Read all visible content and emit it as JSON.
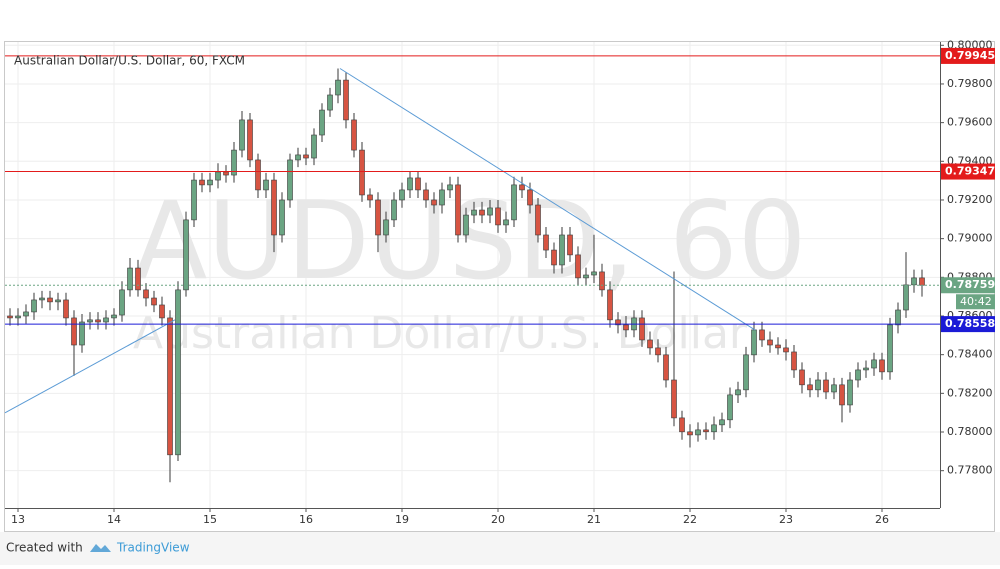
{
  "chart_data": {
    "type": "candlestick",
    "title": "Australian Dollar/U.S. Dollar, 60, FXCM",
    "watermark": "AUDUSD, 60",
    "watermark_subtitle": "Australian Dollar/U.S. Dollar",
    "x": [
      -2,
      0,
      2,
      4,
      6,
      8,
      10,
      12,
      14,
      16,
      18,
      20,
      22,
      24,
      26,
      28,
      30,
      32,
      34,
      36,
      38,
      40,
      42,
      44,
      46,
      48,
      50,
      52,
      54,
      56,
      58,
      60,
      62,
      64,
      66,
      68,
      70,
      72,
      74,
      76,
      78,
      80,
      82,
      84,
      86,
      88,
      90,
      92,
      94,
      96,
      98,
      100,
      102,
      104,
      106,
      108,
      110,
      112,
      114,
      116,
      118,
      120,
      122,
      124,
      126,
      128,
      130,
      132,
      134,
      136,
      138,
      140,
      142,
      144,
      146,
      148,
      150,
      152,
      154,
      156,
      158,
      160,
      162,
      164,
      166,
      168,
      170,
      172,
      174,
      176,
      178,
      180,
      182,
      184,
      186,
      188,
      190,
      192,
      194,
      196,
      198,
      200,
      202,
      204,
      206,
      208,
      210,
      212,
      214,
      216,
      218,
      220,
      222,
      224,
      226
    ],
    "open": [
      0.786,
      0.7859,
      0.786,
      0.78621,
      0.78683,
      0.78693,
      0.78673,
      0.78683,
      0.7859,
      0.7845,
      0.78569,
      0.7858,
      0.78569,
      0.7859,
      0.78605,
      0.78735,
      0.78848,
      0.78735,
      0.78693,
      0.78657,
      0.7859,
      0.77882,
      0.78735,
      0.79097,
      0.79303,
      0.79278,
      0.79303,
      0.79345,
      0.79329,
      0.79458,
      0.79614,
      0.79407,
      0.79252,
      0.79303,
      0.79019,
      0.792,
      0.79407,
      0.79433,
      0.79417,
      0.79536,
      0.79665,
      0.79743,
      0.7982,
      0.79614,
      0.79458,
      0.79226,
      0.792,
      0.79019,
      0.79097,
      0.792,
      0.79252,
      0.79314,
      0.79252,
      0.792,
      0.79174,
      0.79252,
      0.79278,
      0.79019,
      0.79122,
      0.79148,
      0.79122,
      0.79159,
      0.79071,
      0.79097,
      0.79278,
      0.79252,
      0.79174,
      0.79019,
      0.78941,
      0.78864,
      0.79019,
      0.78916,
      0.78797,
      0.78812,
      0.78828,
      0.78735,
      0.7858,
      0.78554,
      0.78528,
      0.7859,
      0.78476,
      0.78435,
      0.78399,
      0.78269,
      0.78073,
      0.78001,
      0.77985,
      0.78011,
      0.78001,
      0.78037,
      0.78063,
      0.78192,
      0.78218,
      0.78399,
      0.78528,
      0.78476,
      0.7845,
      0.78435,
      0.78414,
      0.78321,
      0.78244,
      0.78218,
      0.78269,
      0.78207,
      0.78244,
      0.7814,
      0.78269,
      0.78321,
      0.78331,
      0.78373,
      0.78311,
      0.78554,
      0.78631,
      0.78761,
      0.78797
    ],
    "high": [
      0.7864,
      0.7864,
      0.7866,
      0.7872,
      0.7873,
      0.7873,
      0.7872,
      0.7872,
      0.7863,
      0.7861,
      0.7862,
      0.7862,
      0.7863,
      0.7864,
      0.7878,
      0.789,
      0.7889,
      0.7877,
      0.7873,
      0.787,
      0.7863,
      0.7878,
      0.7914,
      0.7934,
      0.7934,
      0.7934,
      0.7939,
      0.7938,
      0.795,
      0.7966,
      0.7965,
      0.7944,
      0.7934,
      0.7934,
      0.7924,
      0.7944,
      0.7947,
      0.7947,
      0.7957,
      0.797,
      0.7978,
      0.7988,
      0.7986,
      0.7965,
      0.795,
      0.7926,
      0.7924,
      0.7914,
      0.7924,
      0.7929,
      0.7935,
      0.7935,
      0.7929,
      0.7924,
      0.7929,
      0.7932,
      0.7932,
      0.7916,
      0.7919,
      0.7919,
      0.792,
      0.792,
      0.7914,
      0.7932,
      0.7932,
      0.7929,
      0.7921,
      0.7906,
      0.7898,
      0.7906,
      0.7906,
      0.7896,
      0.7885,
      0.7902,
      0.7887,
      0.7878,
      0.7862,
      0.786,
      0.7863,
      0.7863,
      0.7852,
      0.7848,
      0.7844,
      0.7883,
      0.7811,
      0.7804,
      0.7805,
      0.7805,
      0.7808,
      0.781,
      0.7823,
      0.7826,
      0.7844,
      0.7857,
      0.7857,
      0.7852,
      0.7849,
      0.7848,
      0.7845,
      0.7836,
      0.7828,
      0.7831,
      0.7831,
      0.7828,
      0.7828,
      0.7831,
      0.7836,
      0.7837,
      0.7841,
      0.7841,
      0.7859,
      0.7867,
      0.7893,
      0.7884,
      0.7884
    ],
    "low": [
      0.7855,
      0.7855,
      0.7856,
      0.7858,
      0.7864,
      0.7863,
      0.7863,
      0.7855,
      0.7829,
      0.7841,
      0.7853,
      0.7853,
      0.7853,
      0.7855,
      0.7857,
      0.787,
      0.787,
      0.7865,
      0.7862,
      0.7855,
      0.7774,
      0.7785,
      0.787,
      0.7906,
      0.7924,
      0.7924,
      0.7926,
      0.7929,
      0.7929,
      0.7942,
      0.7937,
      0.7921,
      0.7921,
      0.7893,
      0.7898,
      0.7916,
      0.7937,
      0.7938,
      0.7938,
      0.795,
      0.7963,
      0.797,
      0.7957,
      0.7942,
      0.7919,
      0.7916,
      0.7893,
      0.7898,
      0.7906,
      0.7916,
      0.7921,
      0.7921,
      0.7916,
      0.7913,
      0.7913,
      0.7921,
      0.7898,
      0.7898,
      0.7908,
      0.7908,
      0.7908,
      0.7903,
      0.7903,
      0.7906,
      0.7921,
      0.7913,
      0.7898,
      0.789,
      0.7882,
      0.7882,
      0.7888,
      0.7876,
      0.7876,
      0.7877,
      0.787,
      0.7854,
      0.7851,
      0.7849,
      0.7849,
      0.7844,
      0.784,
      0.7836,
      0.7823,
      0.7803,
      0.7796,
      0.7792,
      0.7795,
      0.7796,
      0.7796,
      0.78,
      0.7802,
      0.7815,
      0.7818,
      0.7836,
      0.7844,
      0.7841,
      0.784,
      0.7837,
      0.7828,
      0.782,
      0.7818,
      0.7818,
      0.7817,
      0.7817,
      0.7805,
      0.781,
      0.7823,
      0.7828,
      0.7829,
      0.7827,
      0.7827,
      0.7851,
      0.7859,
      0.7872,
      0.787
    ],
    "close": [
      0.7859,
      0.786,
      0.78621,
      0.78683,
      0.78693,
      0.78673,
      0.78683,
      0.7859,
      0.7845,
      0.78569,
      0.7858,
      0.78569,
      0.7859,
      0.78605,
      0.78735,
      0.78848,
      0.78735,
      0.78693,
      0.78657,
      0.7859,
      0.77882,
      0.78735,
      0.79097,
      0.79303,
      0.79278,
      0.79303,
      0.79345,
      0.79329,
      0.79458,
      0.79614,
      0.79407,
      0.79252,
      0.79303,
      0.79019,
      0.792,
      0.79407,
      0.79433,
      0.79417,
      0.79536,
      0.79665,
      0.79743,
      0.7982,
      0.79614,
      0.79458,
      0.79226,
      0.792,
      0.79019,
      0.79097,
      0.792,
      0.79252,
      0.79314,
      0.79252,
      0.792,
      0.79174,
      0.79252,
      0.79278,
      0.79019,
      0.79122,
      0.79148,
      0.79122,
      0.79159,
      0.79071,
      0.79097,
      0.79278,
      0.79252,
      0.79174,
      0.79019,
      0.78941,
      0.78864,
      0.79019,
      0.78916,
      0.78797,
      0.78812,
      0.78828,
      0.78735,
      0.7858,
      0.78554,
      0.78528,
      0.7859,
      0.78476,
      0.78435,
      0.78399,
      0.78269,
      0.78073,
      0.78001,
      0.77985,
      0.78011,
      0.78001,
      0.78037,
      0.78063,
      0.78192,
      0.78218,
      0.78399,
      0.78528,
      0.78476,
      0.7845,
      0.78435,
      0.78414,
      0.78321,
      0.78244,
      0.78218,
      0.78269,
      0.78207,
      0.78244,
      0.7814,
      0.78269,
      0.78321,
      0.78331,
      0.78373,
      0.78311,
      0.78554,
      0.78631,
      0.78761,
      0.78797,
      0.78759
    ],
    "up_color": "#6ba583",
    "down_color": "#d75442",
    "wick_color": "#3a3a3a",
    "xlim": [
      -3.25,
      230.5
    ],
    "ylim": [
      0.77607,
      0.80017
    ],
    "xticks": [
      {
        "value": 0,
        "label": "13"
      },
      {
        "value": 24,
        "label": "14"
      },
      {
        "value": 48,
        "label": "15"
      },
      {
        "value": 72,
        "label": "16"
      },
      {
        "value": 96,
        "label": "19"
      },
      {
        "value": 120,
        "label": "20"
      },
      {
        "value": 144,
        "label": "21"
      },
      {
        "value": 168,
        "label": "22"
      },
      {
        "value": 192,
        "label": "23"
      },
      {
        "value": 216,
        "label": "26"
      }
    ],
    "yticks": [
      {
        "value": 0.778,
        "label": "0.77800"
      },
      {
        "value": 0.78,
        "label": "0.78000"
      },
      {
        "value": 0.782,
        "label": "0.78200"
      },
      {
        "value": 0.784,
        "label": "0.78400"
      },
      {
        "value": 0.786,
        "label": "0.78600"
      },
      {
        "value": 0.788,
        "label": "0.78800"
      },
      {
        "value": 0.79,
        "label": "0.79000"
      },
      {
        "value": 0.792,
        "label": "0.79200"
      },
      {
        "value": 0.794,
        "label": "0.79400"
      },
      {
        "value": 0.796,
        "label": "0.79600"
      },
      {
        "value": 0.798,
        "label": "0.79800"
      },
      {
        "value": 0.8,
        "label": "0.80000"
      }
    ],
    "grid": true,
    "hlines": [
      {
        "value": 0.79945,
        "color": "#e31b1b",
        "style": "solid"
      },
      {
        "value": 0.79347,
        "color": "#e31b1b",
        "style": "solid"
      },
      {
        "value": 0.78558,
        "color": "#1b1bd6",
        "style": "solid"
      },
      {
        "value": 0.78759,
        "color": "#6ba583",
        "style": "dotted"
      }
    ],
    "countdown": "40:42",
    "trendlines": [
      {
        "x": [
          -3.25,
          39.25
        ],
        "y": [
          0.78099,
          0.7858
        ],
        "color": "#5b9bd5"
      },
      {
        "x": [
          80.5,
          184.25
        ],
        "y": [
          0.7988,
          0.78528
        ],
        "color": "#5b9bd5"
      }
    ],
    "footer": {
      "prefix": "Created with",
      "brand": "TradingView"
    }
  }
}
